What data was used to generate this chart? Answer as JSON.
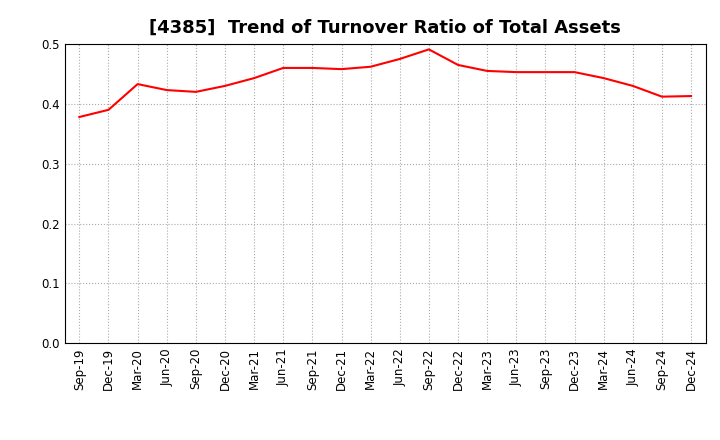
{
  "title": "[4385]  Trend of Turnover Ratio of Total Assets",
  "x_labels": [
    "Sep-19",
    "Dec-19",
    "Mar-20",
    "Jun-20",
    "Sep-20",
    "Dec-20",
    "Mar-21",
    "Jun-21",
    "Sep-21",
    "Dec-21",
    "Mar-22",
    "Jun-22",
    "Sep-22",
    "Dec-22",
    "Mar-23",
    "Jun-23",
    "Sep-23",
    "Dec-23",
    "Mar-24",
    "Jun-24",
    "Sep-24",
    "Dec-24"
  ],
  "y_values": [
    0.378,
    0.39,
    0.433,
    0.423,
    0.42,
    0.43,
    0.443,
    0.46,
    0.46,
    0.458,
    0.462,
    0.475,
    0.491,
    0.465,
    0.455,
    0.453,
    0.453,
    0.453,
    0.443,
    0.43,
    0.412,
    0.413
  ],
  "line_color": "#ff0000",
  "line_width": 1.5,
  "ylim": [
    0.0,
    0.5
  ],
  "yticks": [
    0.0,
    0.1,
    0.2,
    0.3,
    0.4,
    0.5
  ],
  "grid_color": "#aaaaaa",
  "grid_style": "dotted",
  "title_fontsize": 13,
  "tick_fontsize": 8.5,
  "background_color": "#ffffff"
}
